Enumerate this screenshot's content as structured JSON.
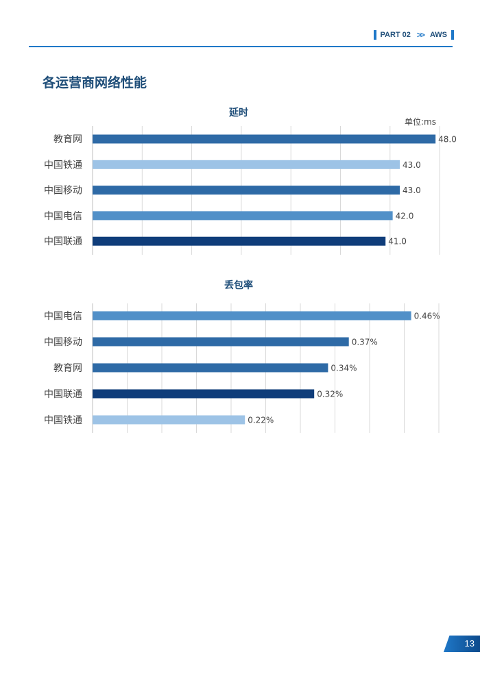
{
  "header": {
    "part": "PART 02",
    "section": "AWS"
  },
  "page_title": "各运营商网络性能",
  "page_number": "13",
  "colors": {
    "accent": "#1f78c8",
    "title": "#1f4e79"
  },
  "chart_data": [
    {
      "type": "bar",
      "orientation": "horizontal",
      "title": "延时",
      "unit_label": "单位:ms",
      "categories": [
        "教育网",
        "中国铁通",
        "中国移动",
        "中国电信",
        "中国联通"
      ],
      "values": [
        48.0,
        43.0,
        43.0,
        42.0,
        41.0
      ],
      "labels": [
        "48.0",
        "43.0",
        "43.0",
        "42.0",
        "41.0"
      ],
      "colors": [
        "#2e6aa6",
        "#9dc3e6",
        "#2e6aa6",
        "#5190c8",
        "#0f3d7a"
      ],
      "xlim": [
        0,
        50
      ],
      "grid": true,
      "gridlines": 7
    },
    {
      "type": "bar",
      "orientation": "horizontal",
      "title": "丢包率",
      "categories": [
        "中国电信",
        "中国移动",
        "教育网",
        "中国联通",
        "中国铁通"
      ],
      "values": [
        0.46,
        0.37,
        0.34,
        0.32,
        0.22
      ],
      "labels": [
        "0.46%",
        "0.37%",
        "0.34%",
        "0.32%",
        "0.22%"
      ],
      "colors": [
        "#5190c8",
        "#2e6aa6",
        "#2e6aa6",
        "#0f3d7a",
        "#9dc3e6"
      ],
      "xlim": [
        0,
        0.5
      ],
      "grid": true,
      "gridlines": 10
    }
  ]
}
